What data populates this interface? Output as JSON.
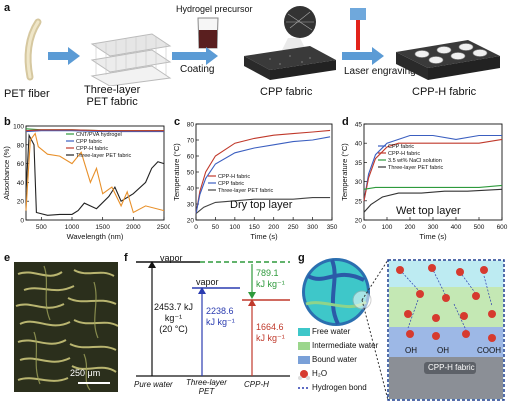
{
  "panel_a": {
    "letter": "a",
    "labels": {
      "pet_fiber": "PET fiber",
      "three_layer": "Three-layer\nPET fabric",
      "hydrogel_precursor": "Hydrogel precursor",
      "coating": "Coating",
      "cpp_fabric": "CPP fabric",
      "laser_engraving": "Laser engraving",
      "cpp_h_fabric": "CPP-H fabric"
    }
  },
  "panel_b": {
    "letter": "b",
    "chart_data": {
      "type": "line",
      "xlabel": "Wavelength (nm)",
      "ylabel": "Absorbance (%)",
      "xlim": [
        250,
        2500
      ],
      "ylim": [
        0,
        100
      ],
      "x_ticks": [
        "500",
        "1000",
        "1500",
        "2000",
        "2500"
      ],
      "y_ticks": [
        "0",
        "20",
        "40",
        "60",
        "80",
        "100"
      ],
      "legend": [
        "CNT/PVA hydrogel",
        "CPP fabric",
        "CPP-H fabric",
        "Three-layer PET fabric"
      ],
      "series": [
        {
          "name": "CNT/PVA hydrogel",
          "color": "#2e9a3c",
          "x": [
            250,
            500,
            1000,
            1500,
            2000,
            2500
          ],
          "y": [
            97,
            96,
            96,
            95,
            95,
            95
          ]
        },
        {
          "name": "CPP fabric",
          "color": "#3b5fc0",
          "x": [
            250,
            500,
            1000,
            1500,
            2000,
            2500
          ],
          "y": [
            94,
            95,
            95,
            94,
            94,
            94
          ]
        },
        {
          "name": "CPP-H fabric",
          "color": "#c0392b",
          "x": [
            250,
            500,
            1000,
            1500,
            2000,
            2500
          ],
          "y": [
            95,
            96,
            96,
            95,
            95,
            95
          ]
        },
        {
          "name": "Three-layer PET fabric",
          "color": "#222222",
          "x": [
            250,
            300,
            380,
            420,
            600,
            800,
            1000,
            1100,
            1200,
            1400,
            1600,
            1700,
            1800,
            2000,
            2200,
            2300,
            2400,
            2500
          ],
          "y": [
            30,
            90,
            80,
            8,
            5,
            6,
            6,
            10,
            18,
            12,
            25,
            35,
            20,
            28,
            40,
            55,
            62,
            60
          ]
        },
        {
          "name": "Three-layer PET fabric (orange)",
          "color": "#e8902a",
          "x": [
            250,
            320,
            400,
            450,
            600,
            800,
            1000,
            1150,
            1300,
            1400,
            1500,
            1650,
            1800,
            1900,
            2000,
            2200,
            2500
          ],
          "y": [
            10,
            85,
            92,
            78,
            70,
            68,
            60,
            72,
            40,
            55,
            28,
            35,
            15,
            30,
            8,
            15,
            10
          ]
        }
      ]
    }
  },
  "panel_c": {
    "letter": "c",
    "annotation": "Dry top layer",
    "chart_data": {
      "type": "line",
      "xlabel": "Time (s)",
      "ylabel": "Temperature (°C)",
      "xlim": [
        0,
        350
      ],
      "ylim": [
        20,
        80
      ],
      "x_ticks": [
        "0",
        "50",
        "100",
        "150",
        "200",
        "250",
        "300",
        "350"
      ],
      "y_ticks": [
        "20",
        "30",
        "40",
        "50",
        "60",
        "70",
        "80"
      ],
      "legend": [
        "CPP-H fabric",
        "CPP fabric",
        "Three-layer PET fabric"
      ],
      "series": [
        {
          "name": "CPP-H fabric",
          "color": "#c0392b",
          "x": [
            0,
            10,
            25,
            50,
            100,
            150,
            200,
            250,
            300,
            345
          ],
          "y": [
            24,
            38,
            50,
            60,
            68,
            71,
            73,
            74,
            75,
            76
          ]
        },
        {
          "name": "CPP fabric",
          "color": "#3b5fc0",
          "x": [
            0,
            10,
            25,
            50,
            100,
            150,
            200,
            250,
            300,
            345
          ],
          "y": [
            24,
            36,
            46,
            55,
            62,
            65,
            67,
            69,
            70,
            72
          ]
        },
        {
          "name": "Three-layer PET fabric",
          "color": "#444444",
          "x": [
            0,
            20,
            50,
            100,
            150,
            200,
            250,
            300,
            345
          ],
          "y": [
            24,
            28,
            31,
            32,
            33,
            33,
            33,
            34,
            34
          ]
        }
      ]
    }
  },
  "panel_d": {
    "letter": "d",
    "annotation": "Wet top layer",
    "chart_data": {
      "type": "line",
      "xlabel": "Time (s)",
      "ylabel": "Temperature (°C)",
      "xlim": [
        0,
        600
      ],
      "ylim": [
        20,
        45
      ],
      "x_ticks": [
        "0",
        "100",
        "200",
        "300",
        "400",
        "500",
        "600"
      ],
      "y_ticks": [
        "20",
        "25",
        "30",
        "35",
        "40",
        "45"
      ],
      "legend": [
        "CPP fabric",
        "CPP-H fabric",
        "3.5 wt% NaCl solution",
        "Three-layer PET fabric"
      ],
      "series": [
        {
          "name": "CPP fabric",
          "color": "#3b5fc0",
          "x": [
            0,
            20,
            50,
            100,
            150,
            200,
            300,
            400,
            500,
            600
          ],
          "y": [
            25,
            32,
            37,
            40,
            41,
            42,
            42,
            41,
            42,
            42
          ]
        },
        {
          "name": "CPP-H fabric",
          "color": "#c0392b",
          "x": [
            0,
            20,
            50,
            100,
            150,
            200,
            300,
            400,
            500,
            600
          ],
          "y": [
            25,
            31,
            36,
            39,
            40,
            40,
            40,
            40,
            40,
            41
          ]
        },
        {
          "name": "3.5 wt% NaCl solution",
          "color": "#2e9a3c",
          "x": [
            0,
            50,
            100,
            200,
            300,
            400,
            500,
            600
          ],
          "y": [
            28,
            28.5,
            28.5,
            28.5,
            28.5,
            28.5,
            28.5,
            29
          ]
        },
        {
          "name": "Three-layer PET fabric",
          "color": "#333333",
          "x": [
            0,
            30,
            80,
            150,
            250,
            350,
            450,
            600
          ],
          "y": [
            22,
            24,
            26,
            27,
            27,
            27.5,
            27.5,
            28
          ]
        }
      ]
    }
  },
  "panel_e": {
    "letter": "e",
    "scale_bar": "250 μm"
  },
  "panel_f": {
    "letter": "f",
    "vapor_left": "vapor",
    "vapor_mid": "vapor",
    "pure_water_value": "2453.7 kJ\nkg⁻¹\n(20 °C)",
    "pet_value": "2238.6\nkJ kg⁻¹",
    "green_value": "789.1\nkJ kg⁻¹",
    "cpph_value": "1664.6\nkJ kg⁻¹",
    "x_labels": [
      "Pure water",
      "Three-layer\nPET",
      "CPP-H"
    ]
  },
  "panel_g": {
    "letter": "g",
    "legend": [
      "Free water",
      "Intermediate water",
      "Bound water",
      "H₂O",
      "Hydrogen bond"
    ],
    "labels": {
      "cpph_fabric": "CPP-H fabric",
      "oh": "OH",
      "cooh": "COOH"
    }
  }
}
